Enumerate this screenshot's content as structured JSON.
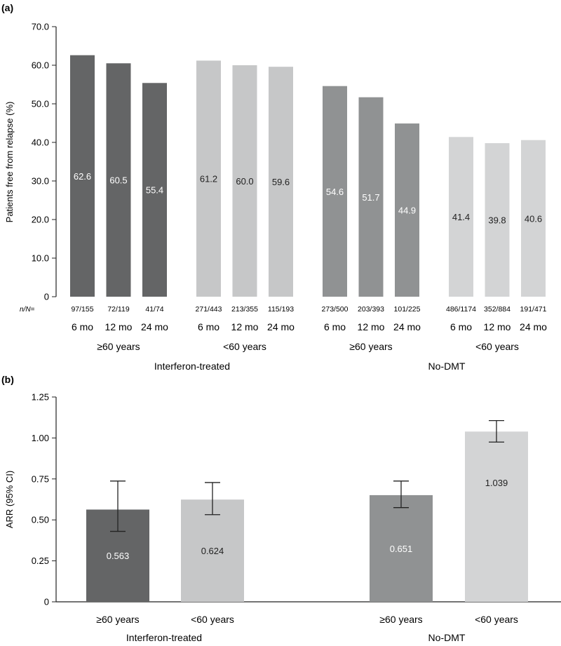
{
  "colors": {
    "dark": "#646566",
    "light": "#c6c7c8",
    "mid": "#909293",
    "lighter": "#d3d4d5",
    "axis": "#222222"
  },
  "chart_data": [
    {
      "panel": "(a)",
      "type": "bar",
      "ylabel": "Patients free from relapse (%)",
      "ylim": [
        0,
        70
      ],
      "yticks": [
        "0",
        "10.0",
        "20.0",
        "30.0",
        "40.0",
        "50.0",
        "60.0",
        "70.0"
      ],
      "n_prefix": "n/N=",
      "groups": [
        {
          "treatment": "Interferon-treated",
          "age": "≥60 years",
          "color": "dark",
          "bars": [
            {
              "label": "6 mo",
              "value": 62.6,
              "value_text": "62.6",
              "n": "97/155"
            },
            {
              "label": "12 mo",
              "value": 60.5,
              "value_text": "60.5",
              "n": "72/119"
            },
            {
              "label": "24 mo",
              "value": 55.4,
              "value_text": "55.4",
              "n": "41/74"
            }
          ]
        },
        {
          "treatment": "Interferon-treated",
          "age": "<60 years",
          "color": "light",
          "bars": [
            {
              "label": "6 mo",
              "value": 61.2,
              "value_text": "61.2",
              "n": "271/443"
            },
            {
              "label": "12 mo",
              "value": 60.0,
              "value_text": "60.0",
              "n": "213/355"
            },
            {
              "label": "24 mo",
              "value": 59.6,
              "value_text": "59.6",
              "n": "115/193"
            }
          ]
        },
        {
          "treatment": "No-DMT",
          "age": "≥60 years",
          "color": "mid",
          "bars": [
            {
              "label": "6 mo",
              "value": 54.6,
              "value_text": "54.6",
              "n": "273/500"
            },
            {
              "label": "12 mo",
              "value": 51.7,
              "value_text": "51.7",
              "n": "203/393"
            },
            {
              "label": "24 mo",
              "value": 44.9,
              "value_text": "44.9",
              "n": "101/225"
            }
          ]
        },
        {
          "treatment": "No-DMT",
          "age": "<60 years",
          "color": "lighter",
          "bars": [
            {
              "label": "6 mo",
              "value": 41.4,
              "value_text": "41.4",
              "n": "486/1174"
            },
            {
              "label": "12 mo",
              "value": 39.8,
              "value_text": "39.8",
              "n": "352/884"
            },
            {
              "label": "24 mo",
              "value": 40.6,
              "value_text": "40.6",
              "n": "191/471"
            }
          ]
        }
      ],
      "treatment_labels": [
        "Interferon-treated",
        "No-DMT"
      ]
    },
    {
      "panel": "(b)",
      "type": "bar",
      "ylabel": "ARR (95% CI)",
      "ylim": [
        0,
        1.25
      ],
      "yticks": [
        "0",
        "0.25",
        "0.50",
        "0.75",
        "1.00",
        "1.25"
      ],
      "bars": [
        {
          "label": "≥60 years",
          "treatment": "Interferon-treated",
          "value": 0.563,
          "value_text": "0.563",
          "ci": [
            0.43,
            0.737
          ],
          "color": "dark"
        },
        {
          "label": "<60 years",
          "treatment": "Interferon-treated",
          "value": 0.624,
          "value_text": "0.624",
          "ci": [
            0.532,
            0.728
          ],
          "color": "light"
        },
        {
          "label": "≥60 years",
          "treatment": "No-DMT",
          "value": 0.651,
          "value_text": "0.651",
          "ci": [
            0.575,
            0.737
          ],
          "color": "mid"
        },
        {
          "label": "<60 years",
          "treatment": "No-DMT",
          "value": 1.039,
          "value_text": "1.039",
          "ci": [
            0.975,
            1.106
          ],
          "color": "lighter"
        }
      ],
      "treatment_labels": [
        "Interferon-treated",
        "No-DMT"
      ]
    }
  ]
}
